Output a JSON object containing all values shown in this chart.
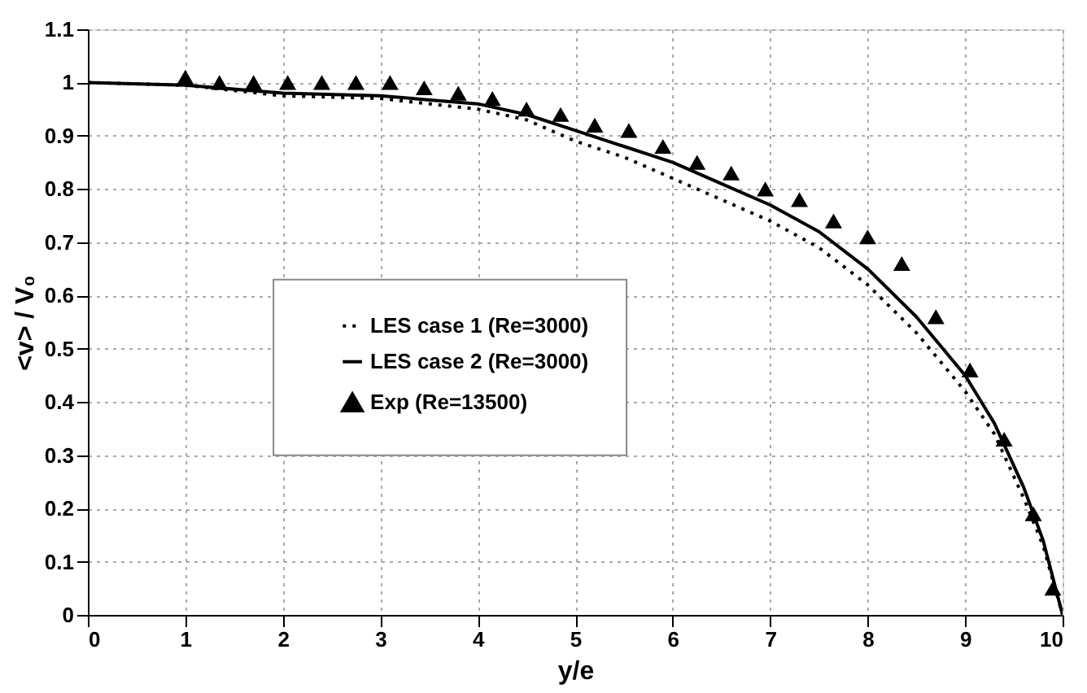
{
  "chart_data": {
    "type": "line",
    "xlabel": "y/e",
    "ylabel": "<v> / V₀",
    "xlim": [
      0,
      10
    ],
    "xticks": [
      0,
      1,
      2,
      3,
      4,
      5,
      6,
      7,
      8,
      9,
      10
    ],
    "ylim": [
      0,
      1.1
    ],
    "yticks": [
      0,
      0.1,
      0.2,
      0.3,
      0.4,
      0.5,
      0.6,
      0.7,
      0.8,
      0.9,
      1,
      1.1
    ],
    "grid": true,
    "legend": "left",
    "series": [
      {
        "name": "LES case 1 (Re=3000)",
        "line_style": "dotted",
        "marker": "none",
        "color": "#000000",
        "x": [
          0,
          1,
          2,
          3,
          4,
          4.5,
          5,
          5.5,
          6,
          6.5,
          7,
          7.5,
          8,
          8.5,
          9,
          9.3,
          9.6,
          9.8,
          10
        ],
        "values": [
          1,
          0.995,
          0.975,
          0.97,
          0.95,
          0.93,
          0.89,
          0.86,
          0.82,
          0.78,
          0.74,
          0.69,
          0.62,
          0.53,
          0.42,
          0.34,
          0.22,
          0.13,
          0
        ]
      },
      {
        "name": "LES case 2 (Re=3000)",
        "line_style": "solid",
        "marker": "none",
        "color": "#000000",
        "x": [
          0,
          1,
          2,
          3,
          4,
          4.5,
          5,
          5.5,
          6,
          6.5,
          7,
          7.5,
          8,
          8.5,
          9,
          9.3,
          9.6,
          9.8,
          10
        ],
        "values": [
          1,
          0.995,
          0.98,
          0.975,
          0.96,
          0.94,
          0.91,
          0.88,
          0.85,
          0.81,
          0.77,
          0.72,
          0.65,
          0.56,
          0.45,
          0.36,
          0.24,
          0.14,
          0
        ]
      },
      {
        "name": "Exp (Re=13500)",
        "type": "scatter",
        "marker": "triangle",
        "color": "#000000",
        "x": [
          1.0,
          1.35,
          1.7,
          2.05,
          2.4,
          2.75,
          3.1,
          3.45,
          3.8,
          4.15,
          4.5,
          4.85,
          5.2,
          5.55,
          5.9,
          6.25,
          6.6,
          6.95,
          7.3,
          7.65,
          8.0,
          8.35,
          8.7,
          9.05,
          9.4,
          9.7,
          9.9
        ],
        "values": [
          1.01,
          1.0,
          1.0,
          1.0,
          1.0,
          1.0,
          1.0,
          0.99,
          0.98,
          0.97,
          0.95,
          0.94,
          0.92,
          0.91,
          0.88,
          0.85,
          0.83,
          0.8,
          0.78,
          0.74,
          0.71,
          0.66,
          0.56,
          0.46,
          0.33,
          0.19,
          0.05
        ]
      }
    ]
  }
}
